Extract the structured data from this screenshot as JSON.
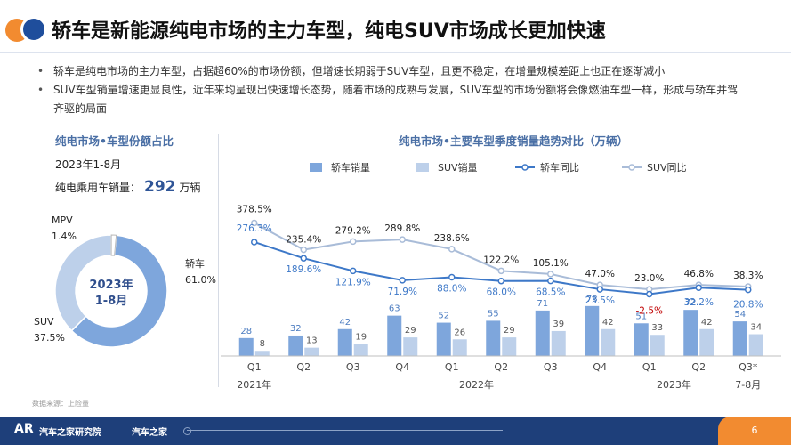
{
  "header": {
    "title": "轿车是新能源纯电市场的主力车型，纯电SUV市场成长更加快速"
  },
  "bullets": [
    "轿车是纯电市场的主力车型，占据超60%的市场份额，但增速长期弱于SUV车型，且更不稳定，在增量规模差距上也正在逐渐减小",
    "SUV车型销量增速更显良性，近年来均呈现出快速增长态势，随着市场的成熟与发展，SUV车型的市场份额将会像燃油车型一样，形成与轿车并驾齐驱的局面"
  ],
  "left_panel": {
    "title": "纯电市场•车型份额占比",
    "date": "2023年1-8月",
    "sales_label": "纯电乘用车销量：",
    "sales_value": "292",
    "sales_unit": "万辆"
  },
  "right_panel": {
    "title": "纯电市场•主要车型季度销量趋势对比（万辆）"
  },
  "source": "数据来源：上险量",
  "footer": {
    "logo": "AR",
    "brand": "汽车之家研究院",
    "brand2": "汽车之家",
    "page_number": "6"
  },
  "colors": {
    "sedan_bar": "#7ea6dc",
    "suv_bar": "#bdd0ea",
    "sedan_line": "#3d78c8",
    "suv_line": "#a9bcd8",
    "negative": "#c00000",
    "mpv": "#ffffff"
  },
  "chart_data": [
    {
      "type": "pie",
      "subtype": "donut",
      "center_label": [
        "2023年",
        "1-8月"
      ],
      "slices": [
        {
          "label": "轿车",
          "value": 61.0,
          "value_label": "61.0%"
        },
        {
          "label": "SUV",
          "value": 37.5,
          "value_label": "37.5%"
        },
        {
          "label": "MPV",
          "value": 1.4,
          "value_label": "1.4%"
        }
      ]
    },
    {
      "type": "bar",
      "title": "纯电市场•主要车型季度销量趋势对比（万辆）",
      "categories": [
        "Q1",
        "Q2",
        "Q3",
        "Q4",
        "Q1",
        "Q2",
        "Q3",
        "Q4",
        "Q1",
        "Q2",
        "Q3*"
      ],
      "year_labels": [
        {
          "label": "2021年",
          "index": 0
        },
        {
          "label": "2022年",
          "index": 4.5
        },
        {
          "label": "2023年",
          "index": 8.5
        },
        {
          "label": "7-8月",
          "index": 10
        }
      ],
      "series": [
        {
          "name": "轿车销量",
          "kind": "bar",
          "values": [
            28,
            32,
            42,
            63,
            52,
            55,
            71,
            78,
            51,
            72,
            54
          ]
        },
        {
          "name": "SUV销量",
          "kind": "bar",
          "values": [
            8,
            13,
            19,
            29,
            26,
            29,
            39,
            42,
            33,
            42,
            34
          ]
        },
        {
          "name": "轿车同比",
          "kind": "line",
          "values": [
            276.3,
            189.6,
            121.9,
            71.9,
            88.0,
            68.0,
            68.5,
            23.5,
            -2.5,
            32.2,
            20.8
          ],
          "labels": [
            "276.3%",
            "189.6%",
            "121.9%",
            "71.9%",
            "88.0%",
            "68.0%",
            "68.5%",
            "23.5%",
            "-2.5%",
            "32.2%",
            "20.8%"
          ]
        },
        {
          "name": "SUV同比",
          "kind": "line",
          "values": [
            378.5,
            235.4,
            279.2,
            289.8,
            238.6,
            122.2,
            105.1,
            47.0,
            23.0,
            46.8,
            38.3
          ],
          "labels": [
            "378.5%",
            "235.4%",
            "279.2%",
            "289.8%",
            "238.6%",
            "122.2%",
            "105.1%",
            "47.0%",
            "23.0%",
            "46.8%",
            "38.3%"
          ]
        }
      ]
    }
  ]
}
